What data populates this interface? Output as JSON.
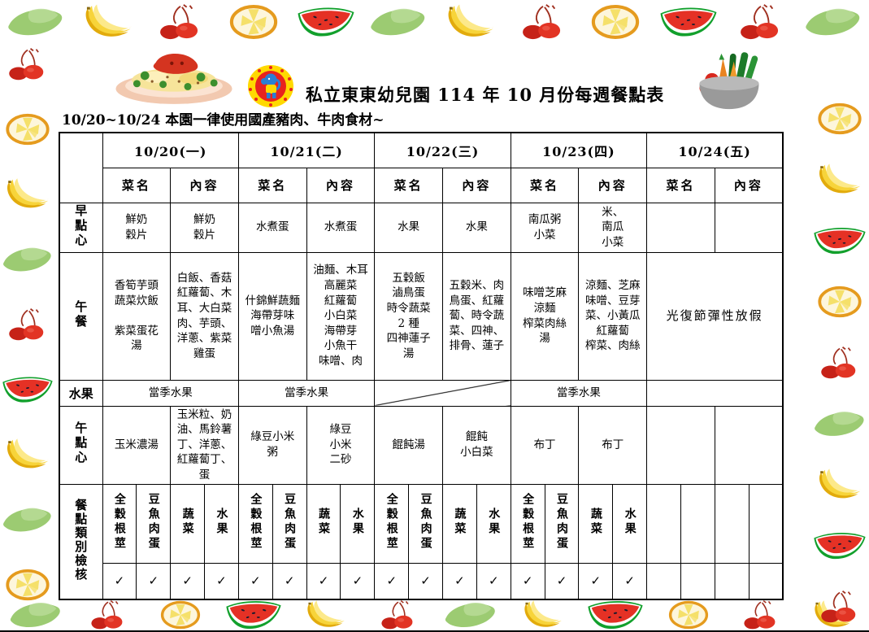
{
  "page": {
    "title": "私立東東幼兒園 114 年 10 月份每週餐點表",
    "subtitle": "10/20~10/24 本園一律使用國產豬肉、牛肉食材~"
  },
  "table": {
    "days": [
      "10/20(一)",
      "10/21(二)",
      "10/22(三)",
      "10/23(四)",
      "10/24(五)"
    ],
    "subheader": {
      "dish": "菜名",
      "content": "內容"
    },
    "morning": {
      "label": "早點心",
      "cells": [
        "鮮奶\n穀片",
        "鮮奶\n穀片",
        "水煮蛋",
        "水煮蛋",
        "水果",
        "水果",
        "南瓜粥\n小菜",
        "米、\n南瓜\n小菜",
        "",
        ""
      ]
    },
    "lunch": {
      "label": "午餐",
      "cells": [
        "香筍芋頭\n蔬菜炊飯\n\n紫菜蛋花\n湯",
        "白飯、香菇\n紅蘿蔔、木\n耳、大白菜\n肉、芋頭、\n洋蔥、紫菜\n雞蛋",
        "什錦鮮蔬麵\n海帶芽味\n噌小魚湯",
        "油麵、木耳\n高麗菜\n紅蘿蔔\n小白菜\n海帶芽\n小魚干\n味噌、肉",
        "五穀飯\n滷鳥蛋\n時令蔬菜\n2 種\n四神蓮子\n湯",
        "五穀米、肉\n鳥蛋、紅蘿\n蔔、時令蔬\n菜、四神、\n排骨、蓮子",
        "味噌芝麻\n涼麵\n榨菜肉絲\n湯",
        "涼麵、芝麻\n味噌、豆芽\n菜、小黃瓜\n紅蘿蔔\n榨菜、肉絲"
      ],
      "holiday": "光復節彈性放假"
    },
    "fruit": {
      "label": "水果",
      "seasonal": "當季水果"
    },
    "afternoon": {
      "label": "午點心",
      "cells": [
        "玉米濃湯",
        "玉米粒、奶\n油、馬鈴薯\n丁、洋蔥、\n紅蘿蔔丁、\n蛋",
        "綠豆小米\n粥",
        "綠豆\n小米\n二砂",
        "餛飩湯",
        "餛飩\n小白菜",
        "布丁",
        "布丁",
        "",
        ""
      ]
    },
    "check": {
      "label": "餐點類別檢核",
      "categories": [
        "全穀根莖",
        "豆魚肉蛋",
        "蔬菜",
        "水果"
      ],
      "mark": "✓"
    }
  },
  "header_images": [
    "fried-rice-plate",
    "school-logo",
    "vegetable-basket"
  ],
  "border_fruits": {
    "top": [
      "lime",
      "banana",
      "cherry",
      "pineapple",
      "watermelon",
      "lime",
      "banana",
      "cherry",
      "pineapple",
      "watermelon",
      "cherry",
      "lime"
    ],
    "bottom": [
      "lime",
      "cherry",
      "pineapple",
      "watermelon",
      "banana",
      "cherry",
      "lime",
      "banana",
      "watermelon",
      "pineapple",
      "cherry",
      "banana"
    ],
    "left": [
      "cherry",
      "pineapple",
      "banana",
      "lime",
      "cherry",
      "watermelon",
      "banana",
      "lime",
      "pineapple"
    ],
    "right": [
      "pineapple",
      "banana",
      "watermelon",
      "pineapple",
      "cherry",
      "lime",
      "banana",
      "watermelon",
      "cherry"
    ]
  },
  "colors": {
    "table_border": "#000000",
    "watermelon_red": "#e53125",
    "rind_green": "#12a02c",
    "banana_yellow": "#f7d43a",
    "cherry_red": "#d8281e",
    "ring_orange": "#e59b1e",
    "lime_green": "#9ccb72"
  }
}
